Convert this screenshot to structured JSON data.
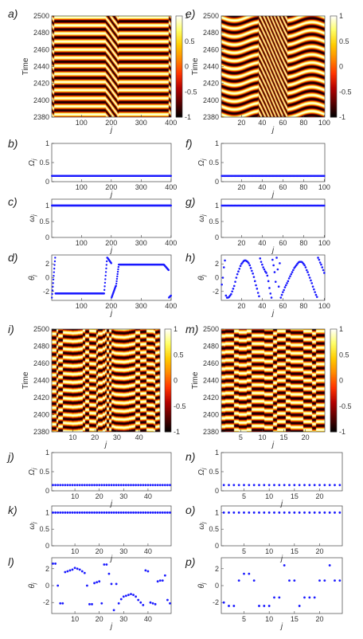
{
  "figure": {
    "panel_labels": [
      "a)",
      "b)",
      "c)",
      "d)",
      "e)",
      "f)",
      "g)",
      "h)",
      "i)",
      "j)",
      "k)",
      "l)",
      "m)",
      "n)",
      "o)",
      "p)"
    ],
    "x_label": "j",
    "time_label": "Time",
    "omega_label": "Ω",
    "omega_sub": "j",
    "w_label": "ω",
    "w_sub": "j",
    "theta_label": "θ",
    "theta_sub": "j"
  },
  "colors": {
    "marker": "#1a1aff",
    "colormap": [
      "#000000",
      "#5a0000",
      "#b30000",
      "#ff3300",
      "#ff8800",
      "#ffcc00",
      "#ffff66",
      "#ffffff"
    ]
  },
  "chart_data": [
    {
      "id": "a",
      "type": "heatmap",
      "N": 400,
      "x_ticks": [
        "100",
        "200",
        "300",
        "400"
      ],
      "y_ticks": [
        "2380",
        "2400",
        "2420",
        "2440",
        "2460",
        "2480",
        "2500"
      ],
      "ylim": [
        2380,
        2500
      ],
      "clim": [
        -1,
        1
      ],
      "colorbar_ticks": [
        "1",
        "0.5",
        "0",
        "-0.5",
        "-1"
      ]
    },
    {
      "id": "e",
      "type": "heatmap",
      "N": 100,
      "x_ticks": [
        "20",
        "40",
        "60",
        "80",
        "100"
      ],
      "y_ticks": [
        "2380",
        "2400",
        "2420",
        "2440",
        "2460",
        "2480",
        "2500"
      ],
      "ylim": [
        2380,
        2500
      ],
      "clim": [
        -1,
        1
      ],
      "colorbar_ticks": [
        "1",
        "0.5",
        "0",
        "-0.5",
        "-1"
      ]
    },
    {
      "id": "i",
      "type": "heatmap",
      "N": 49,
      "x_ticks": [
        "10",
        "20",
        "30",
        "40"
      ],
      "y_ticks": [
        "2380",
        "2400",
        "2420",
        "2440",
        "2460",
        "2480",
        "2500"
      ],
      "ylim": [
        2380,
        2500
      ],
      "clim": [
        -1,
        1
      ],
      "colorbar_ticks": [
        "1",
        "0.5",
        "0",
        "-0.5",
        "-1"
      ]
    },
    {
      "id": "m",
      "type": "heatmap",
      "N": 24,
      "x_ticks": [
        "5",
        "10",
        "15",
        "20"
      ],
      "y_ticks": [
        "2380",
        "2400",
        "2420",
        "2440",
        "2460",
        "2480",
        "2500"
      ],
      "ylim": [
        2380,
        2500
      ],
      "clim": [
        -1,
        1
      ],
      "colorbar_ticks": [
        "1",
        "0.5",
        "0",
        "-0.5",
        "-1"
      ]
    },
    {
      "id": "b",
      "type": "scatter",
      "N": 400,
      "x_ticks": [
        "100",
        "200",
        "300",
        "400"
      ],
      "y_ticks": [
        "0",
        "0.5",
        "1"
      ],
      "ylim": [
        0,
        1
      ],
      "value": 0.15
    },
    {
      "id": "c",
      "type": "scatter",
      "N": 400,
      "x_ticks": [
        "100",
        "200",
        "300",
        "400"
      ],
      "y_ticks": [
        "0",
        "0.5",
        "1"
      ],
      "ylim": [
        0,
        1.2
      ],
      "value": 1.0
    },
    {
      "id": "f",
      "type": "scatter",
      "N": 100,
      "x_ticks": [
        "20",
        "40",
        "60",
        "80",
        "100"
      ],
      "y_ticks": [
        "0",
        "0.5",
        "1"
      ],
      "ylim": [
        0,
        1
      ],
      "value": 0.15
    },
    {
      "id": "g",
      "type": "scatter",
      "N": 100,
      "x_ticks": [
        "20",
        "40",
        "60",
        "80",
        "100"
      ],
      "y_ticks": [
        "0",
        "0.5",
        "1"
      ],
      "ylim": [
        0,
        1.2
      ],
      "value": 1.0
    },
    {
      "id": "j",
      "type": "scatter",
      "N": 49,
      "x_ticks": [
        "10",
        "20",
        "30",
        "40"
      ],
      "y_ticks": [
        "0",
        "0.5",
        "1"
      ],
      "ylim": [
        0,
        1
      ],
      "value": 0.15
    },
    {
      "id": "k",
      "type": "scatter",
      "N": 49,
      "x_ticks": [
        "10",
        "20",
        "30",
        "40"
      ],
      "y_ticks": [
        "0",
        "0.5",
        "1"
      ],
      "ylim": [
        0,
        1.2
      ],
      "value": 1.0
    },
    {
      "id": "n",
      "type": "scatter",
      "N": 24,
      "x_ticks": [
        "5",
        "10",
        "15",
        "20"
      ],
      "y_ticks": [
        "0",
        "0.5",
        "1"
      ],
      "ylim": [
        0,
        1
      ],
      "value": 0.15
    },
    {
      "id": "o",
      "type": "scatter",
      "N": 24,
      "x_ticks": [
        "5",
        "10",
        "15",
        "20"
      ],
      "y_ticks": [
        "0",
        "0.5",
        "1"
      ],
      "ylim": [
        0,
        1.2
      ],
      "value": 1.0
    },
    {
      "id": "d",
      "type": "scatter",
      "N": 400,
      "x_ticks": [
        "100",
        "200",
        "300",
        "400"
      ],
      "y_ticks": [
        "2",
        "0",
        "-2"
      ],
      "ylim": [
        -3.3,
        3.3
      ],
      "segments": [
        [
          1,
          12,
          -2.9,
          2.9
        ],
        [
          13,
          25,
          -2.3,
          -2.3
        ],
        [
          26,
          175,
          -2.3,
          -2.3
        ],
        [
          176,
          186,
          -2.3,
          2.9
        ],
        [
          187,
          200,
          2.9,
          2.1
        ],
        [
          201,
          215,
          -2.9,
          -1.2
        ],
        [
          216,
          225,
          -1.2,
          1.9
        ],
        [
          226,
          375,
          1.9,
          1.9
        ],
        [
          376,
          392,
          1.9,
          1.1
        ],
        [
          393,
          400,
          -2.9,
          -2.6
        ]
      ]
    },
    {
      "id": "h",
      "type": "scatter",
      "N": 100,
      "x_ticks": [
        "20",
        "40",
        "60",
        "80",
        "100"
      ],
      "y_ticks": [
        "2",
        "0",
        "-2"
      ],
      "ylim": [
        -3.3,
        3.3
      ],
      "points": [
        [
          1,
          -1.0
        ],
        [
          2,
          0.0
        ],
        [
          3,
          1.5
        ],
        [
          4,
          2.5
        ],
        [
          5,
          -2.6
        ],
        [
          6,
          -2.9
        ],
        [
          7,
          -2.9
        ],
        [
          8,
          -2.8
        ],
        [
          9,
          -2.6
        ],
        [
          10,
          -2.4
        ],
        [
          11,
          -2.0
        ],
        [
          12,
          -1.6
        ],
        [
          13,
          -1.2
        ],
        [
          14,
          -0.6
        ],
        [
          15,
          0.0
        ],
        [
          16,
          0.5
        ],
        [
          17,
          0.9
        ],
        [
          18,
          1.3
        ],
        [
          19,
          1.7
        ],
        [
          20,
          2.0
        ],
        [
          21,
          2.2
        ],
        [
          22,
          2.4
        ],
        [
          23,
          2.5
        ],
        [
          24,
          2.5
        ],
        [
          25,
          2.4
        ],
        [
          26,
          2.3
        ],
        [
          27,
          2.1
        ],
        [
          28,
          1.8
        ],
        [
          29,
          1.4
        ],
        [
          30,
          1.0
        ],
        [
          31,
          0.6
        ],
        [
          32,
          0.1
        ],
        [
          33,
          -0.5
        ],
        [
          34,
          -1.1
        ],
        [
          35,
          -1.6
        ],
        [
          36,
          -2.2
        ],
        [
          37,
          -2.7
        ],
        [
          38,
          2.8
        ],
        [
          39,
          2.3
        ],
        [
          40,
          1.9
        ],
        [
          41,
          1.5
        ],
        [
          42,
          1.2
        ],
        [
          43,
          0.9
        ],
        [
          44,
          0.7
        ],
        [
          45,
          0.3
        ],
        [
          46,
          -0.5
        ],
        [
          47,
          -1.5
        ],
        [
          48,
          -2.3
        ],
        [
          49,
          -2.9
        ],
        [
          50,
          2.6
        ],
        [
          51,
          1.8
        ],
        [
          52,
          0.8
        ],
        [
          53,
          -0.6
        ],
        [
          54,
          2.9
        ],
        [
          55,
          1.2
        ],
        [
          56,
          -1.3
        ],
        [
          57,
          2.1
        ],
        [
          58,
          -2.9
        ],
        [
          59,
          -2.5
        ],
        [
          60,
          -2.1
        ],
        [
          61,
          -1.8
        ],
        [
          62,
          -1.4
        ],
        [
          63,
          -1.1
        ],
        [
          64,
          -0.8
        ],
        [
          65,
          -0.5
        ],
        [
          66,
          -0.1
        ],
        [
          67,
          0.2
        ],
        [
          68,
          0.5
        ],
        [
          69,
          0.8
        ],
        [
          70,
          1.1
        ],
        [
          71,
          1.4
        ],
        [
          72,
          1.6
        ],
        [
          73,
          1.8
        ],
        [
          74,
          2.0
        ],
        [
          75,
          2.2
        ],
        [
          76,
          2.3
        ],
        [
          77,
          2.3
        ],
        [
          78,
          2.3
        ],
        [
          79,
          2.2
        ],
        [
          80,
          2.0
        ],
        [
          81,
          1.8
        ],
        [
          82,
          1.5
        ],
        [
          83,
          1.1
        ],
        [
          84,
          0.8
        ],
        [
          85,
          0.4
        ],
        [
          86,
          0.0
        ],
        [
          87,
          -0.4
        ],
        [
          88,
          -0.8
        ],
        [
          89,
          -1.3
        ],
        [
          90,
          -1.7
        ],
        [
          91,
          -2.1
        ],
        [
          92,
          -2.5
        ],
        [
          93,
          -2.8
        ],
        [
          94,
          2.9
        ],
        [
          95,
          2.6
        ],
        [
          96,
          2.2
        ],
        [
          97,
          1.9
        ],
        [
          98,
          1.5
        ],
        [
          99,
          1.1
        ],
        [
          100,
          0.7
        ]
      ]
    },
    {
      "id": "l",
      "type": "scatter",
      "N": 49,
      "x_ticks": [
        "10",
        "20",
        "30",
        "40"
      ],
      "y_ticks": [
        "2",
        "0",
        "-2"
      ],
      "ylim": [
        -3.3,
        3.3
      ],
      "points": [
        [
          1,
          2.6
        ],
        [
          2,
          2.6
        ],
        [
          3,
          0.0
        ],
        [
          4,
          -2.1
        ],
        [
          5,
          -2.1
        ],
        [
          6,
          1.6
        ],
        [
          7,
          1.7
        ],
        [
          8,
          1.8
        ],
        [
          9,
          1.9
        ],
        [
          10,
          2.1
        ],
        [
          11,
          2.0
        ],
        [
          12,
          1.9
        ],
        [
          13,
          1.7
        ],
        [
          14,
          1.5
        ],
        [
          15,
          0.0
        ],
        [
          16,
          -2.2
        ],
        [
          17,
          -2.2
        ],
        [
          18,
          0.3
        ],
        [
          19,
          0.4
        ],
        [
          20,
          0.5
        ],
        [
          21,
          -2.1
        ],
        [
          22,
          2.5
        ],
        [
          23,
          2.5
        ],
        [
          24,
          1.4
        ],
        [
          25,
          0.2
        ],
        [
          26,
          -2.9
        ],
        [
          27,
          0.2
        ],
        [
          28,
          -2.1
        ],
        [
          29,
          -1.6
        ],
        [
          30,
          -1.3
        ],
        [
          31,
          -1.2
        ],
        [
          32,
          -1.1
        ],
        [
          33,
          -1.0
        ],
        [
          34,
          -1.1
        ],
        [
          35,
          -1.3
        ],
        [
          36,
          -1.7
        ],
        [
          37,
          -2.0
        ],
        [
          38,
          -2.3
        ],
        [
          39,
          1.8
        ],
        [
          40,
          1.7
        ],
        [
          41,
          -2.0
        ],
        [
          42,
          -2.1
        ],
        [
          43,
          -2.2
        ],
        [
          44,
          0.5
        ],
        [
          45,
          0.6
        ],
        [
          46,
          0.6
        ],
        [
          47,
          1.2
        ],
        [
          48,
          -1.7
        ],
        [
          49,
          -2.1
        ]
      ]
    },
    {
      "id": "p",
      "type": "scatter",
      "N": 24,
      "x_ticks": [
        "5",
        "10",
        "15",
        "20"
      ],
      "y_ticks": [
        "2",
        "0",
        "-2"
      ],
      "ylim": [
        -3.3,
        3.3
      ],
      "points": [
        [
          1,
          -2.0
        ],
        [
          2,
          -2.4
        ],
        [
          3,
          -2.4
        ],
        [
          4,
          0.6
        ],
        [
          5,
          1.4
        ],
        [
          6,
          1.4
        ],
        [
          7,
          0.6
        ],
        [
          8,
          -2.4
        ],
        [
          9,
          -2.4
        ],
        [
          10,
          -2.4
        ],
        [
          11,
          -1.4
        ],
        [
          12,
          -1.4
        ],
        [
          13,
          2.4
        ],
        [
          14,
          0.6
        ],
        [
          15,
          0.6
        ],
        [
          16,
          -2.4
        ],
        [
          17,
          -1.4
        ],
        [
          18,
          -1.4
        ],
        [
          19,
          -1.4
        ],
        [
          20,
          0.6
        ],
        [
          21,
          0.6
        ],
        [
          22,
          2.4
        ],
        [
          23,
          0.6
        ],
        [
          24,
          0.6
        ]
      ]
    }
  ]
}
